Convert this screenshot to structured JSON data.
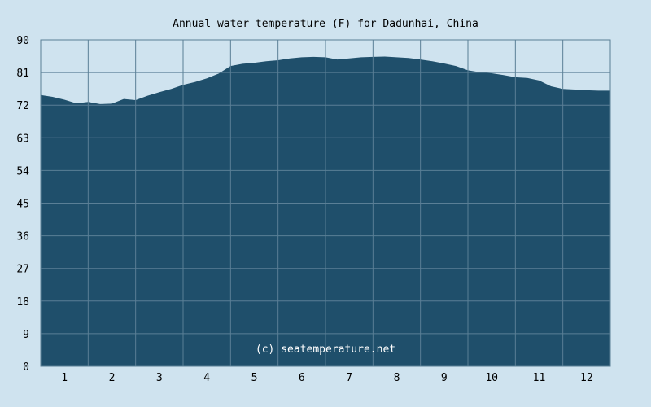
{
  "chart_data": {
    "type": "area",
    "title": "Annual water temperature (F) for Dadunhai, China",
    "xlabel": "",
    "ylabel": "",
    "x_ticks": [
      "1",
      "2",
      "3",
      "4",
      "5",
      "6",
      "7",
      "8",
      "9",
      "10",
      "11",
      "12"
    ],
    "y_ticks": [
      "0",
      "9",
      "18",
      "27",
      "36",
      "45",
      "54",
      "63",
      "72",
      "81",
      "90"
    ],
    "ylim": [
      0,
      90
    ],
    "xlim": [
      0.5,
      12.5
    ],
    "grid": true,
    "legend": "none",
    "watermark": "(c) seatemperature.net",
    "colors": {
      "background": "#cfe3ef",
      "fill": "#1f4f6b",
      "grid": "#5a7f96",
      "plot_bg": "#cfe3ef"
    },
    "series": [
      {
        "x": [
          0.5,
          0.75,
          1.0,
          1.25,
          1.5,
          1.75,
          2.0,
          2.25,
          2.5,
          2.75,
          3.0,
          3.25,
          3.5,
          3.75,
          4.0,
          4.25,
          4.5,
          4.75,
          5.0,
          5.25,
          5.5,
          5.75,
          6.0,
          6.25,
          6.5,
          6.75,
          7.0,
          7.25,
          7.5,
          7.75,
          8.0,
          8.25,
          8.5,
          8.75,
          9.0,
          9.25,
          9.5,
          9.75,
          10.0,
          10.25,
          10.5,
          10.75,
          11.0,
          11.25,
          11.5,
          11.75,
          12.0,
          12.25,
          12.5
        ],
        "y": [
          74.8,
          74.3,
          73.5,
          72.5,
          72.9,
          72.3,
          72.4,
          73.7,
          73.4,
          74.6,
          75.6,
          76.5,
          77.6,
          78.4,
          79.4,
          80.7,
          82.8,
          83.4,
          83.7,
          84.1,
          84.4,
          84.9,
          85.2,
          85.3,
          85.2,
          84.6,
          84.9,
          85.2,
          85.3,
          85.4,
          85.2,
          85.0,
          84.6,
          84.1,
          83.5,
          82.8,
          81.6,
          81.1,
          80.8,
          80.3,
          79.7,
          79.5,
          78.8,
          77.2,
          76.5,
          76.3,
          76.1,
          76.0,
          76.0
        ]
      }
    ]
  }
}
